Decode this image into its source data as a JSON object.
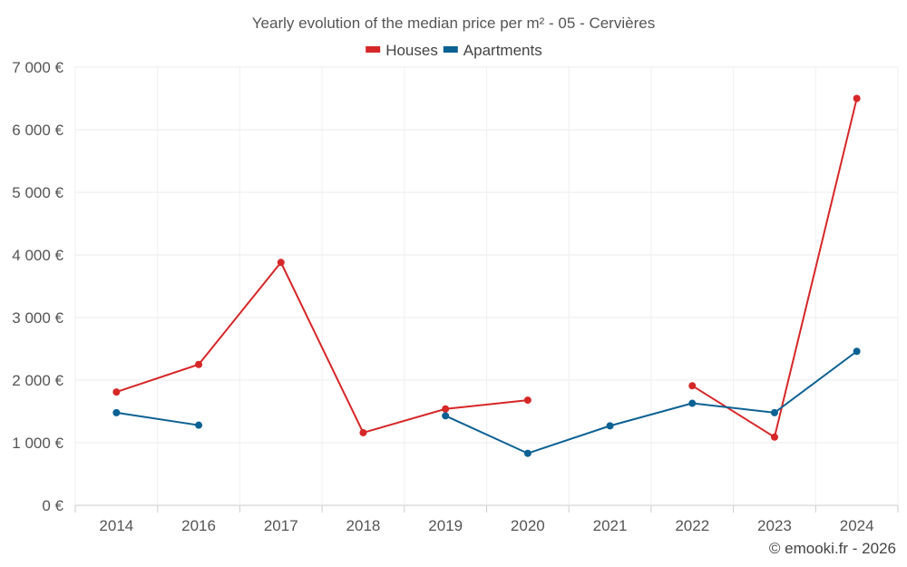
{
  "chart_data": {
    "type": "line",
    "title": "Yearly evolution of the median price per m² - 05 - Cervières",
    "categories": [
      "2014",
      "2016",
      "2017",
      "2018",
      "2019",
      "2020",
      "2021",
      "2022",
      "2023",
      "2024"
    ],
    "series": [
      {
        "name": "Houses",
        "color": "#d62728",
        "values": [
          1810,
          2250,
          3880,
          1160,
          1540,
          1680,
          null,
          1910,
          1090,
          6500
        ]
      },
      {
        "name": "Apartments",
        "color": "#0c6193",
        "values": [
          1480,
          1280,
          null,
          null,
          1430,
          830,
          1270,
          1630,
          1480,
          2460
        ]
      }
    ],
    "ylim": [
      0,
      7000
    ],
    "yticks": [
      0,
      1000,
      2000,
      3000,
      4000,
      5000,
      6000,
      7000
    ],
    "ytick_labels": [
      "0 €",
      "1 000 €",
      "2 000 €",
      "3 000 €",
      "4 000 €",
      "5 000 €",
      "6 000 €",
      "7 000 €"
    ],
    "xlabel": "",
    "ylabel": "",
    "grid": true,
    "legend_position": "top-center"
  },
  "credit": "© emooki.fr - 2026"
}
